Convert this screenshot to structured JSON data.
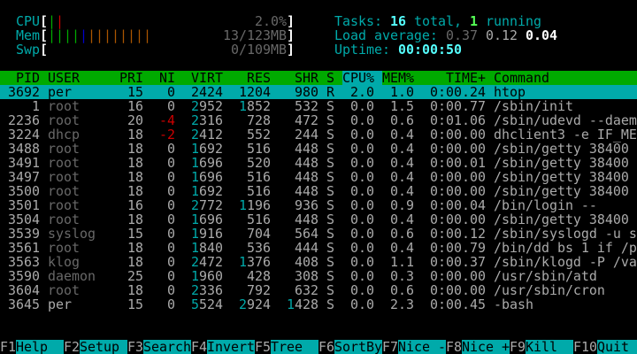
{
  "meters": {
    "cpu": {
      "label": "CPU",
      "value": "2.0%",
      "bars": [
        {
          "color": "#00aa00"
        },
        {
          "color": "#cc0000"
        }
      ]
    },
    "mem": {
      "label": "Mem",
      "value": "13/123MB",
      "bars": [
        {
          "color": "#00aa00"
        },
        {
          "color": "#00aa00"
        },
        {
          "color": "#00aa00"
        },
        {
          "color": "#00aa00"
        },
        {
          "color": "#0000cc"
        },
        {
          "color": "#aa5500"
        },
        {
          "color": "#aa5500"
        },
        {
          "color": "#aa5500"
        },
        {
          "color": "#aa5500"
        },
        {
          "color": "#aa5500"
        },
        {
          "color": "#aa5500"
        },
        {
          "color": "#aa5500"
        },
        {
          "color": "#aa5500"
        }
      ]
    },
    "swp": {
      "label": "Swp",
      "value": "0/109MB",
      "bars": []
    }
  },
  "summary": {
    "tasks_label": "Tasks: ",
    "tasks_total": "16",
    "tasks_total_suffix": " total, ",
    "tasks_running": "1",
    "tasks_running_suffix": " running",
    "load_label": "Load average: ",
    "load_1": "0.37",
    "load_5": "0.12",
    "load_15": "0.04",
    "uptime_label": "Uptime: ",
    "uptime": "00:00:50"
  },
  "processes": {
    "columns": {
      "pid": "PID",
      "user": "USER",
      "pri": "PRI",
      "ni": "NI",
      "virt": "VIRT",
      "res": "RES",
      "shr": "SHR",
      "s": "S",
      "cpu": "CPU%",
      "mem": "MEM%",
      "time": "TIME+",
      "command": "Command"
    },
    "sort_column": "cpu",
    "selected_pid": "3692",
    "rows": [
      {
        "pid": "3692",
        "user": "per",
        "pri": "15",
        "ni": "0",
        "virt": "2424",
        "res": "1204",
        "shr": "980",
        "s": "R",
        "cpu": "2.0",
        "mem": "1.0",
        "time": "0:00.24",
        "command": "htop"
      },
      {
        "pid": "1",
        "user": "root",
        "pri": "16",
        "ni": "0",
        "virt": "2952",
        "res": "1852",
        "shr": "532",
        "s": "S",
        "cpu": "0.0",
        "mem": "1.5",
        "time": "0:00.77",
        "command": "/sbin/init"
      },
      {
        "pid": "2236",
        "user": "root",
        "pri": "20",
        "ni": "-4",
        "virt": "2316",
        "res": "728",
        "shr": "472",
        "s": "S",
        "cpu": "0.0",
        "mem": "0.6",
        "time": "0:01.06",
        "command": "/sbin/udevd --daem"
      },
      {
        "pid": "3224",
        "user": "dhcp",
        "pri": "18",
        "ni": "-2",
        "virt": "2412",
        "res": "552",
        "shr": "244",
        "s": "S",
        "cpu": "0.0",
        "mem": "0.4",
        "time": "0:00.00",
        "command": "dhclient3 -e IF_ME"
      },
      {
        "pid": "3488",
        "user": "root",
        "pri": "18",
        "ni": "0",
        "virt": "1692",
        "res": "516",
        "shr": "448",
        "s": "S",
        "cpu": "0.0",
        "mem": "0.4",
        "time": "0:00.00",
        "command": "/sbin/getty 38400"
      },
      {
        "pid": "3491",
        "user": "root",
        "pri": "18",
        "ni": "0",
        "virt": "1696",
        "res": "520",
        "shr": "448",
        "s": "S",
        "cpu": "0.0",
        "mem": "0.4",
        "time": "0:00.01",
        "command": "/sbin/getty 38400"
      },
      {
        "pid": "3497",
        "user": "root",
        "pri": "18",
        "ni": "0",
        "virt": "1696",
        "res": "516",
        "shr": "448",
        "s": "S",
        "cpu": "0.0",
        "mem": "0.4",
        "time": "0:00.00",
        "command": "/sbin/getty 38400"
      },
      {
        "pid": "3500",
        "user": "root",
        "pri": "18",
        "ni": "0",
        "virt": "1692",
        "res": "516",
        "shr": "448",
        "s": "S",
        "cpu": "0.0",
        "mem": "0.4",
        "time": "0:00.00",
        "command": "/sbin/getty 38400"
      },
      {
        "pid": "3501",
        "user": "root",
        "pri": "16",
        "ni": "0",
        "virt": "2772",
        "res": "1196",
        "shr": "936",
        "s": "S",
        "cpu": "0.0",
        "mem": "0.9",
        "time": "0:00.04",
        "command": "/bin/login --"
      },
      {
        "pid": "3504",
        "user": "root",
        "pri": "18",
        "ni": "0",
        "virt": "1696",
        "res": "516",
        "shr": "448",
        "s": "S",
        "cpu": "0.0",
        "mem": "0.4",
        "time": "0:00.00",
        "command": "/sbin/getty 38400"
      },
      {
        "pid": "3539",
        "user": "syslog",
        "pri": "15",
        "ni": "0",
        "virt": "1916",
        "res": "704",
        "shr": "564",
        "s": "S",
        "cpu": "0.0",
        "mem": "0.6",
        "time": "0:00.12",
        "command": "/sbin/syslogd -u s"
      },
      {
        "pid": "3561",
        "user": "root",
        "pri": "18",
        "ni": "0",
        "virt": "1840",
        "res": "536",
        "shr": "444",
        "s": "S",
        "cpu": "0.0",
        "mem": "0.4",
        "time": "0:00.79",
        "command": "/bin/dd bs 1 if /p"
      },
      {
        "pid": "3563",
        "user": "klog",
        "pri": "18",
        "ni": "0",
        "virt": "2472",
        "res": "1376",
        "shr": "408",
        "s": "S",
        "cpu": "0.0",
        "mem": "1.1",
        "time": "0:00.37",
        "command": "/sbin/klogd -P /va"
      },
      {
        "pid": "3590",
        "user": "daemon",
        "pri": "25",
        "ni": "0",
        "virt": "1960",
        "res": "428",
        "shr": "308",
        "s": "S",
        "cpu": "0.0",
        "mem": "0.3",
        "time": "0:00.00",
        "command": "/usr/sbin/atd"
      },
      {
        "pid": "3604",
        "user": "root",
        "pri": "18",
        "ni": "0",
        "virt": "2336",
        "res": "792",
        "shr": "632",
        "s": "S",
        "cpu": "0.0",
        "mem": "0.6",
        "time": "0:00.00",
        "command": "/usr/sbin/cron"
      },
      {
        "pid": "3645",
        "user": "per",
        "pri": "15",
        "ni": "0",
        "virt": "5524",
        "res": "2924",
        "shr": "1428",
        "s": "S",
        "cpu": "0.0",
        "mem": "2.3",
        "time": "0:00.45",
        "command": "-bash"
      }
    ]
  },
  "footer": [
    {
      "key": "F1",
      "label": "Help"
    },
    {
      "key": "F2",
      "label": "Setup"
    },
    {
      "key": "F3",
      "label": "Search"
    },
    {
      "key": "F4",
      "label": "Invert"
    },
    {
      "key": "F5",
      "label": "Tree"
    },
    {
      "key": "F6",
      "label": "SortBy"
    },
    {
      "key": "F7",
      "label": "Nice -"
    },
    {
      "key": "F8",
      "label": "Nice +"
    },
    {
      "key": "F9",
      "label": "Kill"
    },
    {
      "key": "F10",
      "label": "Quit"
    }
  ]
}
